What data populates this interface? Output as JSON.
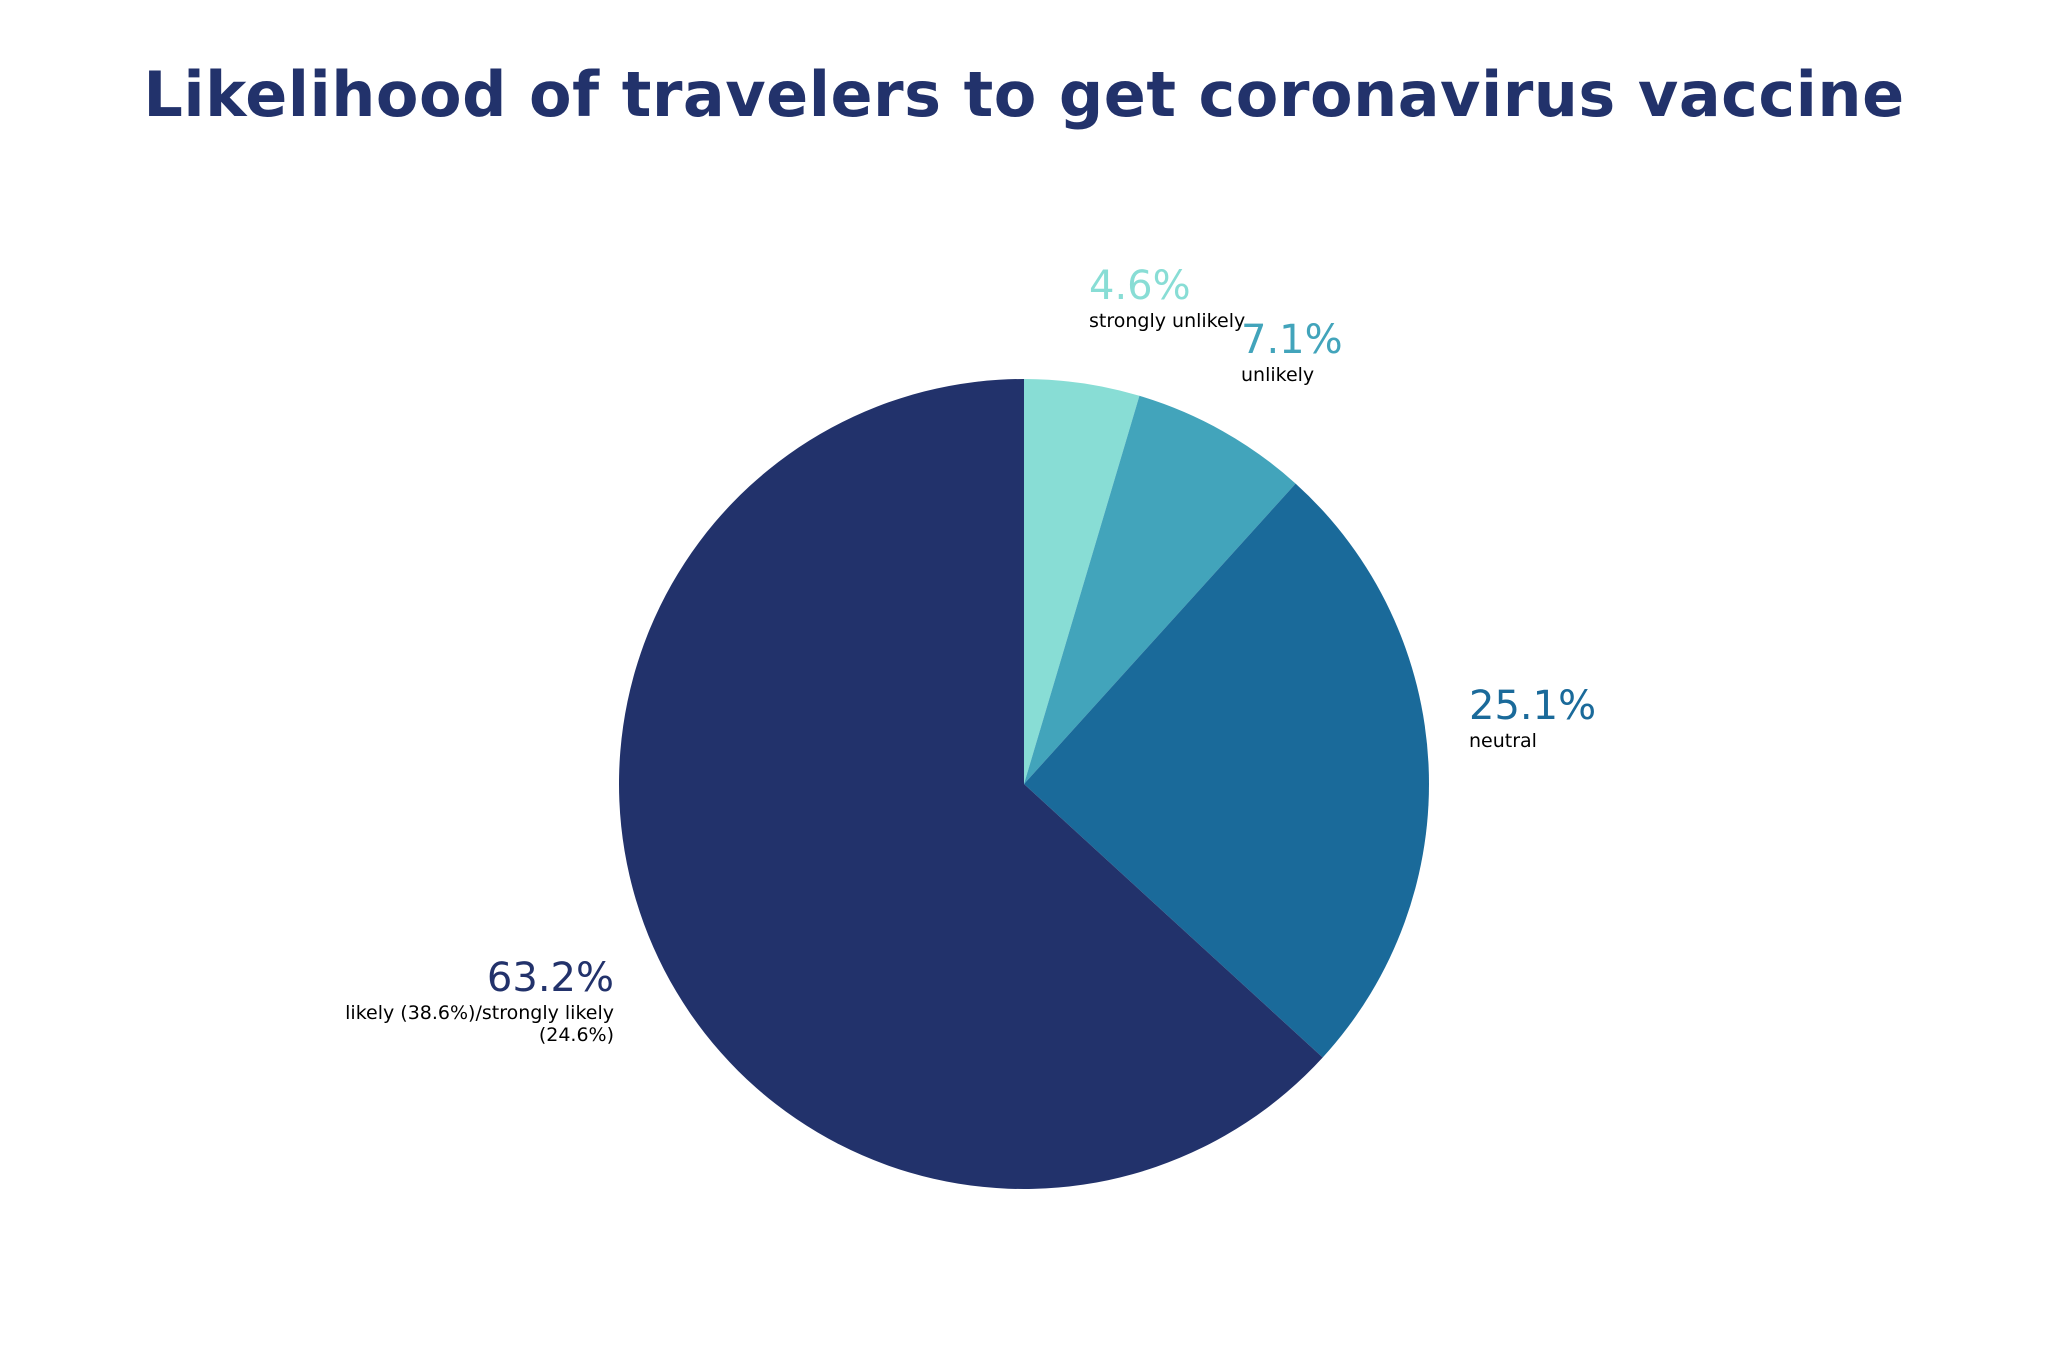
{
  "chart_data": {
    "type": "pie",
    "title": "Likelihood of travelers to get coronavirus vaccine",
    "categories": [
      "strongly unlikely",
      "unlikely",
      "neutral",
      "likely (38.6%)/strongly likely (24.6%)"
    ],
    "values": [
      4.6,
      7.1,
      25.1,
      63.2
    ],
    "value_labels": [
      "4.6%",
      "7.1%",
      "25.1%",
      "63.2%"
    ],
    "colors": [
      "#88ddd5",
      "#42a4bb",
      "#1a6a9a",
      "#22326b"
    ]
  }
}
